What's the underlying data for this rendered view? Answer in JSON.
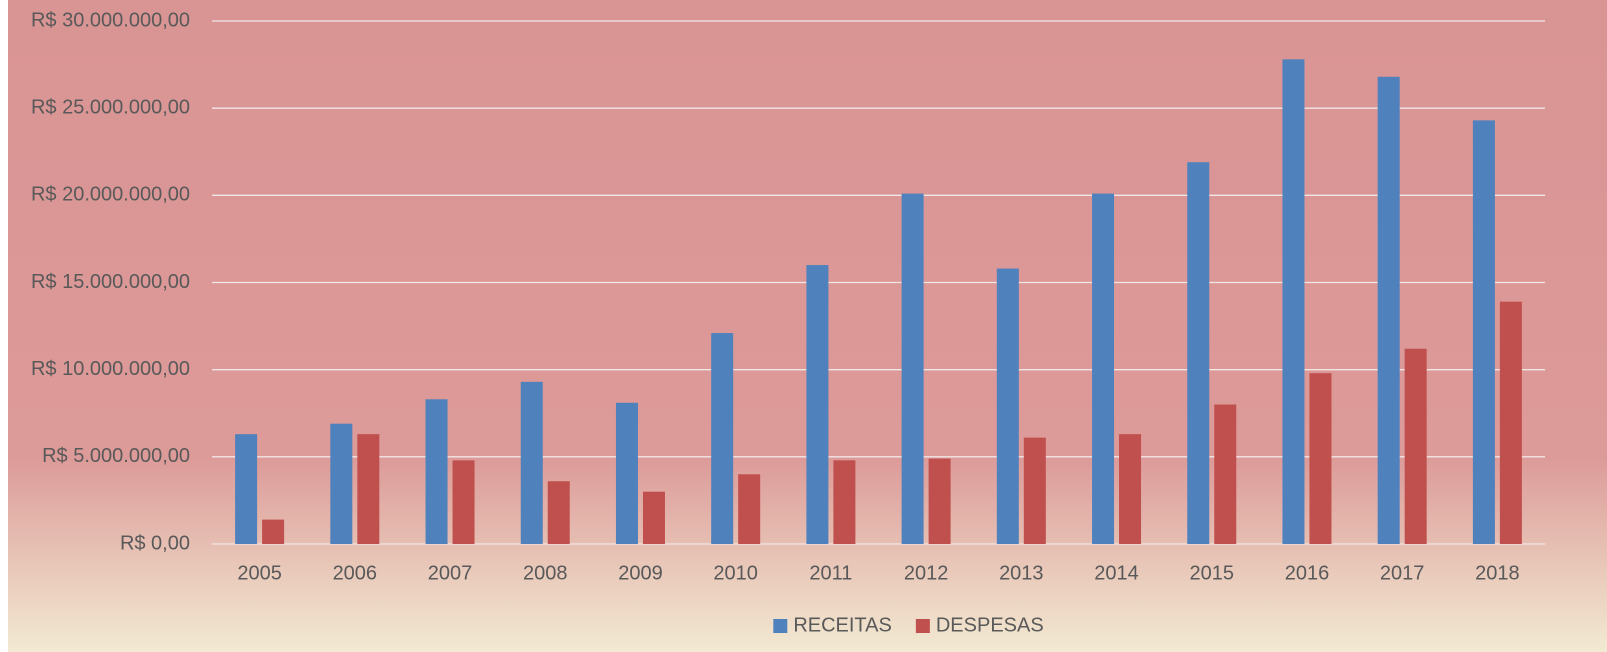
{
  "chart_data": {
    "type": "bar",
    "categories": [
      "2005",
      "2006",
      "2007",
      "2008",
      "2009",
      "2010",
      "2011",
      "2012",
      "2013",
      "2014",
      "2015",
      "2016",
      "2017",
      "2018"
    ],
    "series": [
      {
        "name": "RECEITAS",
        "color": "#4f81bd",
        "values": [
          6300000,
          6900000,
          8300000,
          9300000,
          8100000,
          12100000,
          16000000,
          20100000,
          15800000,
          20100000,
          21900000,
          27800000,
          26800000,
          24300000
        ]
      },
      {
        "name": "DESPESAS",
        "color": "#c0504d",
        "values": [
          1400000,
          6300000,
          4800000,
          3600000,
          3000000,
          4000000,
          4800000,
          4900000,
          6100000,
          6300000,
          8000000,
          9800000,
          11200000,
          13900000
        ]
      }
    ],
    "ylim": [
      0,
      30000000
    ],
    "yticks": [
      {
        "value": 0,
        "label": "R$ 0,00"
      },
      {
        "value": 5000000,
        "label": "R$ 5.000.000,00"
      },
      {
        "value": 10000000,
        "label": "R$ 10.000.000,00"
      },
      {
        "value": 15000000,
        "label": "R$ 15.000.000,00"
      },
      {
        "value": 20000000,
        "label": "R$ 20.000.000,00"
      },
      {
        "value": 25000000,
        "label": "R$ 25.000.000,00"
      },
      {
        "value": 30000000,
        "label": "R$ 30.000.000,00"
      }
    ],
    "grid": true,
    "legend": "bottom"
  }
}
